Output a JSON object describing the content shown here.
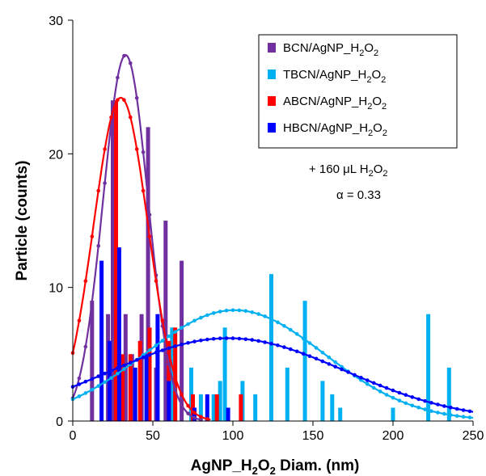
{
  "chart_data": {
    "type": "bar",
    "xlabel": "AgNP_H2O2 Diam. (nm)",
    "ylabel": "Particle (counts)",
    "xlim": [
      0,
      250
    ],
    "ylim": [
      0,
      30
    ],
    "xticks": [
      "0",
      "50",
      "100",
      "150",
      "200",
      "250"
    ],
    "yticks": [
      "0",
      "10",
      "20",
      "30"
    ],
    "grid": false,
    "legend_position": "top-right",
    "annotations": [
      "+ 160 μL H2O2",
      "α = 0.33"
    ],
    "series": [
      {
        "name": "BCN/AgNP_H2O2",
        "color": "#7030a0",
        "bars": [
          [
            12,
            9
          ],
          [
            22,
            8
          ],
          [
            25,
            24
          ],
          [
            33,
            8
          ],
          [
            37,
            5
          ],
          [
            43,
            8
          ],
          [
            47,
            22
          ],
          [
            52,
            4
          ],
          [
            58,
            15
          ],
          [
            63,
            4
          ],
          [
            68,
            12
          ]
        ],
        "fit": {
          "mean": 33,
          "sd": 14,
          "peak": 27.4
        }
      },
      {
        "name": "TBCN/AgNP_H2O2",
        "color": "#00b0f0",
        "bars": [
          [
            62,
            7
          ],
          [
            74,
            4
          ],
          [
            80,
            2
          ],
          [
            88,
            2
          ],
          [
            92,
            3
          ],
          [
            95,
            7
          ],
          [
            106,
            3
          ],
          [
            114,
            2
          ],
          [
            124,
            11
          ],
          [
            134,
            4
          ],
          [
            145,
            9
          ],
          [
            156,
            3
          ],
          [
            162,
            2
          ],
          [
            167,
            1
          ],
          [
            200,
            1
          ],
          [
            222,
            8
          ],
          [
            235,
            4
          ]
        ],
        "fit": {
          "mean": 101,
          "sd": 56,
          "peak": 8.3
        }
      },
      {
        "name": "ABCN/AgNP_H2O2",
        "color": "#ff0000",
        "bars": [
          [
            27,
            24
          ],
          [
            31,
            5
          ],
          [
            36,
            5
          ],
          [
            42,
            6
          ],
          [
            48,
            7
          ],
          [
            53,
            5
          ],
          [
            60,
            6
          ],
          [
            64,
            7
          ],
          [
            75,
            2
          ],
          [
            90,
            2
          ],
          [
            105,
            2
          ]
        ],
        "fit": {
          "mean": 30,
          "sd": 17,
          "peak": 24.2
        }
      },
      {
        "name": "HBCN/AgNP_H2O2",
        "color": "#0000ff",
        "bars": [
          [
            18,
            12
          ],
          [
            23,
            6
          ],
          [
            29,
            13
          ],
          [
            39,
            4
          ],
          [
            46,
            5
          ],
          [
            53,
            8
          ],
          [
            60,
            3
          ],
          [
            76,
            1
          ],
          [
            84,
            2
          ],
          [
            97,
            1
          ]
        ],
        "fit": {
          "mean": 97,
          "sd": 73,
          "peak": 6.2
        }
      }
    ]
  }
}
